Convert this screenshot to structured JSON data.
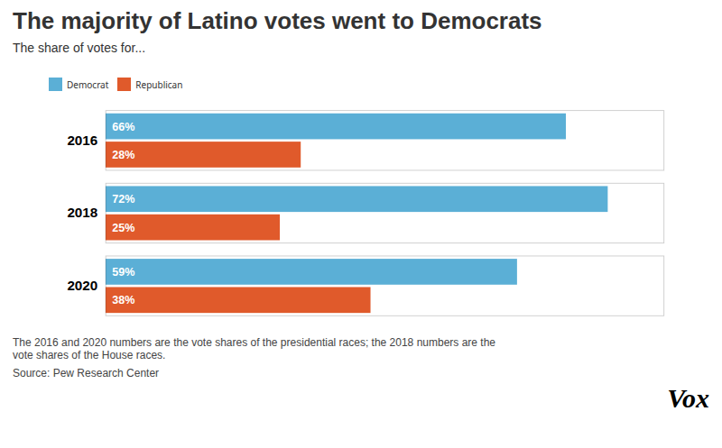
{
  "chart_data": {
    "type": "bar",
    "orientation": "horizontal",
    "title": "The majority of Latino votes went to Democrats",
    "subtitle": "The share of votes for...",
    "categories": [
      "2016",
      "2018",
      "2020"
    ],
    "series": [
      {
        "name": "Democrat",
        "color": "#5BAFD6",
        "values": [
          66,
          72,
          59
        ],
        "value_labels": [
          "66%",
          "72%",
          "59%"
        ]
      },
      {
        "name": "Republican",
        "color": "#E05A2B",
        "values": [
          28,
          25,
          38
        ],
        "value_labels": [
          "28%",
          "25%",
          "38%"
        ]
      }
    ],
    "xlim": [
      0,
      80
    ],
    "data_labels": true,
    "tick_labels": "y",
    "legend": "top",
    "annotations": [
      "The 2016 and 2020 numbers are the vote shares of the presidential races; the 2018 numbers are the\nvote shares of the House races.",
      "Source: Pew Research Center",
      "Vox"
    ]
  }
}
